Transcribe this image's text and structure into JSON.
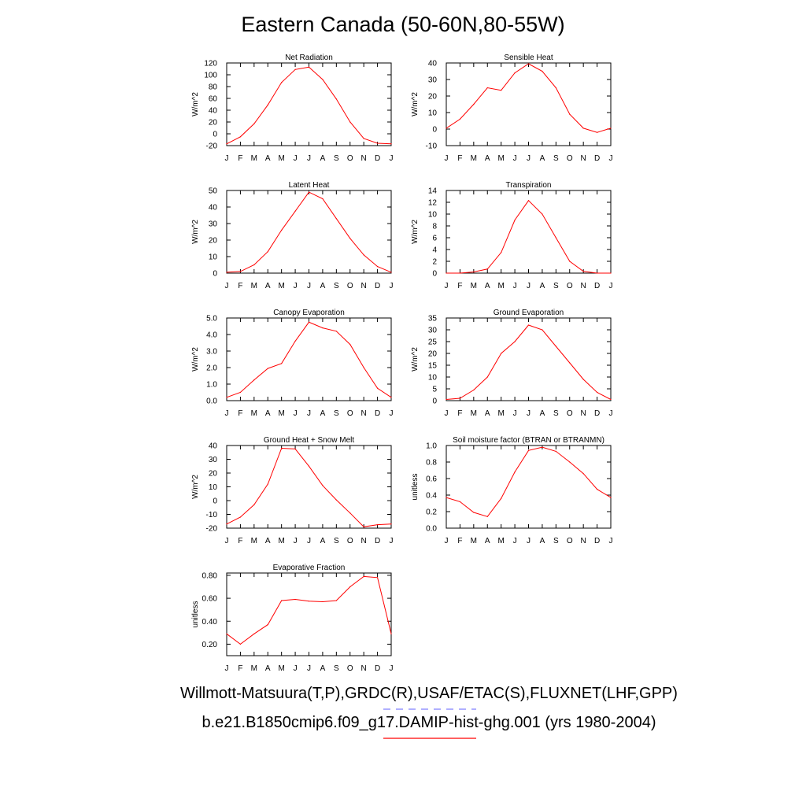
{
  "title": "Eastern Canada (50-60N,80-55W)",
  "legend": {
    "obs_label": "Willmott-Matsuura(T,P),GRDC(R),USAF/ETAC(S),FLUXNET(LHF,GPP)",
    "obs_color": "#8080ff",
    "model_label": "b.e21.B1850cmip6.f09_g17.DAMIP-hist-ghg.001 (yrs 1980-2004)",
    "model_color": "#ff0000"
  },
  "chart_data": [
    {
      "type": "line",
      "title": "Net Radiation",
      "ylabel": "W/m^2",
      "x": [
        "J",
        "F",
        "M",
        "A",
        "M",
        "J",
        "J",
        "A",
        "S",
        "O",
        "N",
        "D",
        "J"
      ],
      "ylim": [
        -20,
        120
      ],
      "yticks": [
        "120",
        "100",
        "80",
        "60",
        "40",
        "20",
        "0",
        "-20"
      ],
      "ytick_values": [
        120,
        100,
        80,
        60,
        40,
        20,
        0,
        -20
      ],
      "series": [
        {
          "color": "#ff0000",
          "values": [
            -17,
            -5,
            17,
            49,
            87,
            109,
            113,
            92,
            59,
            20,
            -8,
            -16,
            -17
          ]
        }
      ]
    },
    {
      "type": "line",
      "title": "Sensible Heat",
      "ylabel": "W/m^2",
      "x": [
        "J",
        "F",
        "M",
        "A",
        "M",
        "J",
        "J",
        "A",
        "S",
        "O",
        "N",
        "D",
        "J"
      ],
      "ylim": [
        -10,
        40
      ],
      "yticks": [
        "40",
        "30",
        "20",
        "10",
        "0",
        "-10"
      ],
      "ytick_values": [
        40,
        30,
        20,
        10,
        0,
        -10
      ],
      "series": [
        {
          "color": "#ff0000",
          "values": [
            0.5,
            6,
            15,
            25,
            23.5,
            34,
            39.5,
            35,
            25,
            9,
            0.5,
            -2,
            0.5
          ]
        }
      ]
    },
    {
      "type": "line",
      "title": "Latent Heat",
      "ylabel": "W/m^2",
      "x": [
        "J",
        "F",
        "M",
        "A",
        "M",
        "J",
        "J",
        "A",
        "S",
        "O",
        "N",
        "D",
        "J"
      ],
      "ylim": [
        0,
        50
      ],
      "yticks": [
        "50",
        "40",
        "30",
        "20",
        "10",
        "0"
      ],
      "ytick_values": [
        50,
        40,
        30,
        20,
        10,
        0
      ],
      "series": [
        {
          "color": "#ff0000",
          "values": [
            0.5,
            1,
            5,
            13,
            26,
            37.5,
            49,
            45,
            33,
            21,
            11,
            4,
            0.5
          ]
        }
      ]
    },
    {
      "type": "line",
      "title": "Transpiration",
      "ylabel": "W/m^2",
      "x": [
        "J",
        "F",
        "M",
        "A",
        "M",
        "J",
        "J",
        "A",
        "S",
        "O",
        "N",
        "D",
        "J"
      ],
      "ylim": [
        0,
        14
      ],
      "yticks": [
        "14",
        "12",
        "10",
        "8",
        "6",
        "4",
        "2",
        "0"
      ],
      "ytick_values": [
        14,
        12,
        10,
        8,
        6,
        4,
        2,
        0
      ],
      "series": [
        {
          "color": "#ff0000",
          "values": [
            0,
            0,
            0.2,
            0.7,
            3.5,
            9,
            12.3,
            10,
            6,
            2,
            0.3,
            0,
            0
          ]
        }
      ]
    },
    {
      "type": "line",
      "title": "Canopy Evaporation",
      "ylabel": "W/m^2",
      "x": [
        "J",
        "F",
        "M",
        "A",
        "M",
        "J",
        "J",
        "A",
        "S",
        "O",
        "N",
        "D",
        "J"
      ],
      "ylim": [
        0,
        5
      ],
      "yticks": [
        "5.0",
        "4.0",
        "3.0",
        "2.0",
        "1.0",
        "0.0"
      ],
      "ytick_values": [
        5,
        4,
        3,
        2,
        1,
        0
      ],
      "series": [
        {
          "color": "#ff0000",
          "values": [
            0.2,
            0.5,
            1.25,
            1.95,
            2.25,
            3.6,
            4.75,
            4.4,
            4.2,
            3.4,
            2,
            0.75,
            0.2
          ]
        }
      ]
    },
    {
      "type": "line",
      "title": "Ground Evaporation",
      "ylabel": "W/m^2",
      "x": [
        "J",
        "F",
        "M",
        "A",
        "M",
        "J",
        "J",
        "A",
        "S",
        "O",
        "N",
        "D",
        "J"
      ],
      "ylim": [
        0,
        35
      ],
      "yticks": [
        "35",
        "30",
        "25",
        "20",
        "15",
        "10",
        "5",
        "0"
      ],
      "ytick_values": [
        35,
        30,
        25,
        20,
        15,
        10,
        5,
        0
      ],
      "series": [
        {
          "color": "#ff0000",
          "values": [
            0.5,
            1,
            4.5,
            10,
            20,
            25,
            32,
            30,
            23,
            16,
            9,
            3.5,
            0.5
          ]
        }
      ]
    },
    {
      "type": "line",
      "title": "Ground Heat + Snow Melt",
      "ylabel": "W/m^2",
      "x": [
        "J",
        "F",
        "M",
        "A",
        "M",
        "J",
        "J",
        "A",
        "S",
        "O",
        "N",
        "D",
        "J"
      ],
      "ylim": [
        -20,
        40
      ],
      "yticks": [
        "40",
        "30",
        "20",
        "10",
        "0",
        "-10",
        "-20"
      ],
      "ytick_values": [
        40,
        30,
        20,
        10,
        0,
        -10,
        -20
      ],
      "series": [
        {
          "color": "#ff0000",
          "values": [
            -17,
            -12,
            -3,
            12,
            38,
            37.5,
            25,
            11,
            0.5,
            -9,
            -19,
            -17.5,
            -17
          ]
        }
      ]
    },
    {
      "type": "line",
      "title": "Soil moisture factor (BTRAN or BTRANMN)",
      "ylabel": "unitless",
      "x": [
        "J",
        "F",
        "M",
        "A",
        "M",
        "J",
        "J",
        "A",
        "S",
        "O",
        "N",
        "D",
        "J"
      ],
      "ylim": [
        0,
        1
      ],
      "yticks": [
        "1.0",
        "0.8",
        "0.6",
        "0.4",
        "0.2",
        "0.0"
      ],
      "ytick_values": [
        1,
        0.8,
        0.6,
        0.4,
        0.2,
        0
      ],
      "series": [
        {
          "color": "#ff0000",
          "values": [
            0.37,
            0.32,
            0.19,
            0.14,
            0.36,
            0.68,
            0.94,
            0.98,
            0.93,
            0.8,
            0.66,
            0.47,
            0.37
          ]
        }
      ]
    },
    {
      "type": "line",
      "title": "Evaporative Fraction",
      "ylabel": "unitless",
      "x": [
        "J",
        "F",
        "M",
        "A",
        "M",
        "J",
        "J",
        "A",
        "S",
        "O",
        "N",
        "D",
        "J"
      ],
      "ylim": [
        0.1,
        0.82
      ],
      "yticks": [
        "0.80",
        "0.60",
        "0.40",
        "0.20"
      ],
      "ytick_values": [
        0.8,
        0.6,
        0.4,
        0.2
      ],
      "series": [
        {
          "color": "#ff0000",
          "values": [
            0.29,
            0.2,
            0.29,
            0.37,
            0.58,
            0.59,
            0.575,
            0.57,
            0.58,
            0.7,
            0.79,
            0.78,
            0.29
          ]
        }
      ]
    }
  ]
}
